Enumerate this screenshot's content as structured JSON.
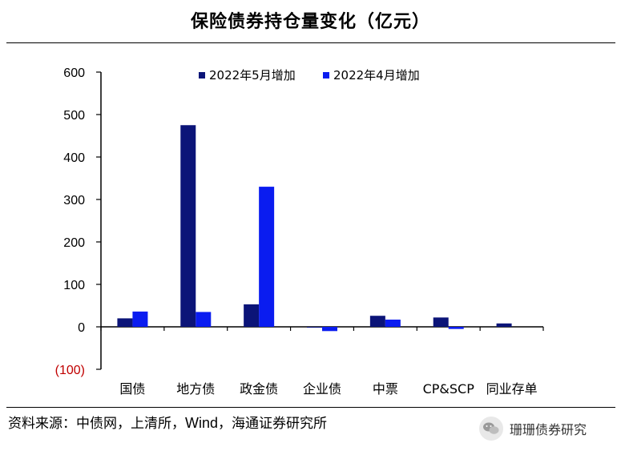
{
  "page": {
    "title": "保险债券持仓量变化（亿元）",
    "source_prefix": "资料来源：中债网，上清所，",
    "source_latin": "Wind",
    "source_suffix": "，海通证券研究所",
    "brand": "珊珊债券研究"
  },
  "chart_data": {
    "type": "bar",
    "title": "保险债券持仓量变化（亿元）",
    "xlabel": "",
    "ylabel": "",
    "ylim": [
      -100,
      600
    ],
    "yticks": [
      -100,
      0,
      100,
      200,
      300,
      400,
      500,
      600
    ],
    "ytick_labels": [
      "(100)",
      "0",
      "100",
      "200",
      "300",
      "400",
      "500",
      "600"
    ],
    "categories": [
      "国债",
      "地方债",
      "政金债",
      "企业债",
      "中票",
      "CP&SCP",
      "同业存单"
    ],
    "series": [
      {
        "name": "2022年5月增加",
        "color": "#0b1478",
        "values": [
          20,
          475,
          53,
          -2,
          26,
          22,
          8
        ]
      },
      {
        "name": "2022年4月增加",
        "color": "#0a1cf0",
        "values": [
          36,
          35,
          330,
          -10,
          17,
          -5,
          0
        ]
      }
    ],
    "negative_tick_color": "#c00000",
    "grid": false,
    "legend_position": "top-center"
  }
}
